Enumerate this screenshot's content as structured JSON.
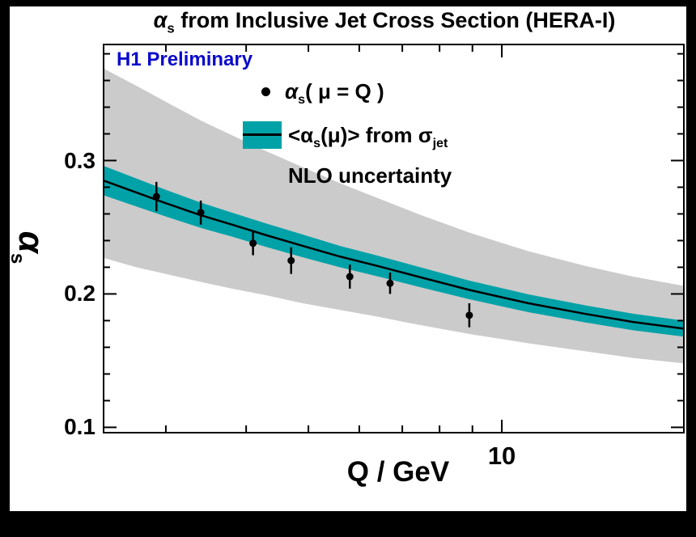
{
  "title": {
    "alpha": "α",
    "sub": "s",
    "rest": " from Inclusive Jet Cross Section (HERA-I)"
  },
  "watermark": "H1 Preliminary",
  "legend": {
    "entry1": {
      "alpha": "α",
      "sub": "s",
      "rest": "( μ = Q )"
    },
    "entry2": {
      "pre": "<α",
      "sub1": "s",
      "mid": "(μ)> from σ",
      "sub2": "jet"
    },
    "entry3": "NLO uncertainty"
  },
  "axes": {
    "y_title": {
      "alpha": "α",
      "sub": "s"
    },
    "x_title": "Q / GeV",
    "y_ticks": [
      {
        "value": 0.3,
        "label": "0.3"
      },
      {
        "value": 0.2,
        "label": "0.2"
      },
      {
        "value": 0.1,
        "label": "0.1"
      }
    ],
    "x_ticks": [
      {
        "value": 10,
        "label": "10"
      }
    ]
  },
  "colors": {
    "curve_band": "#00A2A8",
    "nlo_band": "#CBCBCB",
    "watermark": "#0A0ACC",
    "marker": "#000000",
    "frame": "#000000"
  },
  "chart_data": {
    "type": "line",
    "title": "αs from Inclusive Jet Cross Section (HERA-I)",
    "xlabel": "Q / GeV",
    "ylabel": "αs",
    "x_scale": "log",
    "xlim": [
      2.4,
      19.2
    ],
    "ylim": [
      0.096,
      0.387
    ],
    "x_major_ticks": [
      10
    ],
    "x_minor_ticks": [
      3,
      4,
      5,
      6,
      7,
      8,
      9
    ],
    "y_major_ticks": [
      0.1,
      0.2,
      0.3
    ],
    "y_minor_step": 0.02,
    "grid": false,
    "legend_position": "top-right",
    "points": {
      "name": "αs( μ = Q )",
      "Q": [
        2.9,
        3.4,
        4.1,
        4.7,
        5.8,
        6.7,
        8.9
      ],
      "alpha_s": [
        0.273,
        0.261,
        0.238,
        0.225,
        0.213,
        0.208,
        0.184
      ],
      "err": [
        0.011,
        0.009,
        0.009,
        0.01,
        0.009,
        0.008,
        0.009
      ]
    },
    "curve": {
      "name": "<αs(μ)> from σjet",
      "Q": [
        2.4,
        2.7,
        3.0,
        3.4,
        3.8,
        4.3,
        4.9,
        5.6,
        6.4,
        7.4,
        8.9,
        11.0,
        13.5,
        16.0,
        19.2
      ],
      "alpha_s": [
        0.285,
        0.276,
        0.268,
        0.259,
        0.252,
        0.244,
        0.236,
        0.228,
        0.221,
        0.213,
        0.203,
        0.193,
        0.185,
        0.179,
        0.174
      ],
      "band_halfwidth": [
        0.011,
        0.0105,
        0.01,
        0.0095,
        0.009,
        0.0088,
        0.0085,
        0.008,
        0.0078,
        0.0075,
        0.007,
        0.0067,
        0.0064,
        0.0062,
        0.006
      ]
    },
    "nlo_band": {
      "name": "NLO uncertainty",
      "upper_offset": [
        0.084,
        0.08,
        0.076,
        0.071,
        0.067,
        0.063,
        0.059,
        0.055,
        0.051,
        0.047,
        0.043,
        0.039,
        0.036,
        0.034,
        0.032
      ],
      "lower_offset": [
        0.058,
        0.056,
        0.053,
        0.05,
        0.048,
        0.045,
        0.043,
        0.04,
        0.038,
        0.036,
        0.033,
        0.03,
        0.028,
        0.027,
        0.026
      ]
    }
  }
}
